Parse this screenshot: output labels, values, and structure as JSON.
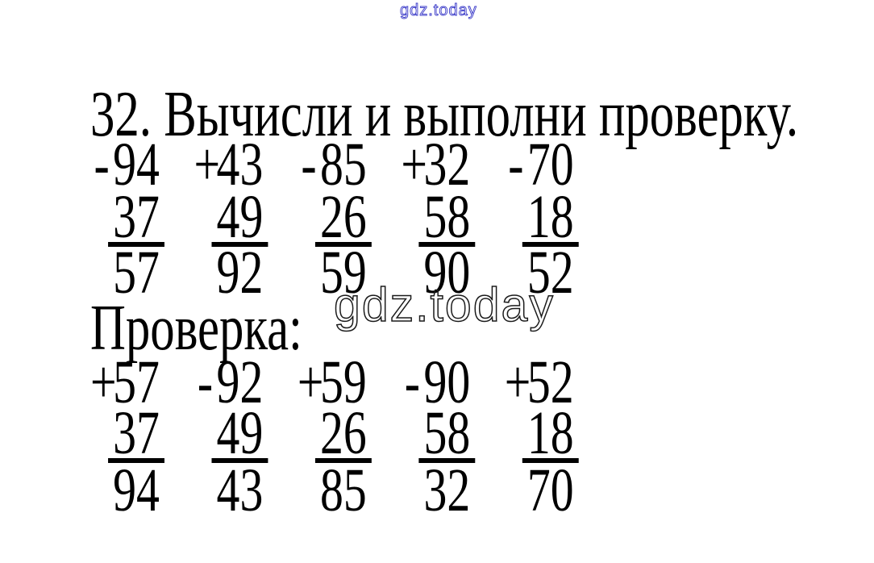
{
  "watermark_top": {
    "text": "gdz.today",
    "color": "#3a3ac8"
  },
  "watermark_mid": {
    "text": "gdz.today",
    "color": "#1a1a1a"
  },
  "title": "32. Вычисли и выполни проверку.",
  "check_label": "Проверка:",
  "text_color": "#000000",
  "block1": {
    "operations": [
      {
        "sign": "-",
        "operand": "94"
      },
      {
        "sign": "+",
        "operand": "43"
      },
      {
        "sign": "-",
        "operand": "85"
      },
      {
        "sign": "+",
        "operand": "32"
      },
      {
        "sign": "-",
        "operand": "70"
      }
    ],
    "second_operands": [
      "37",
      "49",
      "26",
      "58",
      "18"
    ],
    "results": [
      "57",
      "92",
      "59",
      "90",
      "52"
    ]
  },
  "block2": {
    "operations": [
      {
        "sign": "+",
        "operand": "57"
      },
      {
        "sign": "-",
        "operand": "92"
      },
      {
        "sign": "+",
        "operand": "59"
      },
      {
        "sign": "-",
        "operand": "90"
      },
      {
        "sign": "+",
        "operand": "52"
      }
    ],
    "second_operands": [
      "37",
      "49",
      "26",
      "58",
      "18"
    ],
    "results": [
      "94",
      "43",
      "85",
      "32",
      "70"
    ]
  }
}
